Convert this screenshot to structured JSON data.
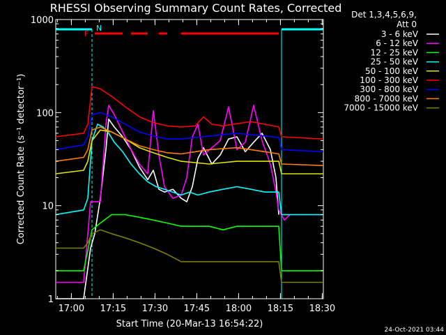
{
  "title": "RHESSI Observing Summary Count Rates, Corrected",
  "detector_info": [
    "Det 1,3,4,5,6,9,",
    "Att 0"
  ],
  "flag_labels": {
    "flare": "F",
    "night": "N"
  },
  "timestamp": "24-Oct-2021 03:44",
  "colors": {
    "axes": "#ffffff",
    "cyan_flag": "#00ffff",
    "red_flag": "#ff0000",
    "series": [
      "#ffffff",
      "#ff00ff",
      "#00ff00",
      "#00ffff",
      "#e5e500",
      "#ff0000",
      "#0000ff",
      "#ff8000",
      "#808000"
    ]
  },
  "chart_data": {
    "type": "line",
    "title": "RHESSI Observing Summary Count Rates, Corrected",
    "xlabel": "Start Time (20-Mar-13 16:54:22)",
    "ylabel": "Corrected Count Rate (s⁻¹ detector⁻¹)",
    "y_scale": "log",
    "ylim": [
      1,
      1000
    ],
    "xlim_min": [
      0,
      96
    ],
    "x_tick_labels": [
      "17:00",
      "17:15",
      "17:30",
      "17:45",
      "18:00",
      "18:15",
      "18:30"
    ],
    "x_tick_min": [
      5.6,
      20.6,
      35.6,
      50.6,
      65.6,
      80.6,
      95.6
    ],
    "y_tick_labels": [
      "1",
      "10",
      "100",
      "1000"
    ],
    "y_tick_values": [
      1,
      10,
      100,
      1000
    ],
    "legend_position": "right",
    "series": [
      {
        "name": "3 - 6 keV",
        "color": "#ffffff",
        "x": [
          0,
          10,
          12.5,
          14,
          16,
          18,
          19,
          21,
          24,
          27,
          30,
          33,
          35,
          37,
          39,
          42,
          45,
          47,
          49,
          51,
          53,
          56,
          59,
          62,
          65,
          68,
          71,
          74,
          77,
          79,
          80
        ],
        "y": [
          1,
          1,
          3.5,
          5,
          12,
          40,
          85,
          70,
          55,
          40,
          26,
          19,
          24,
          15,
          14,
          15,
          12,
          11,
          16,
          32,
          42,
          28,
          35,
          52,
          55,
          38,
          48,
          60,
          40,
          20,
          8
        ]
      },
      {
        "name": "6 - 12 keV",
        "color": "#ff00ff",
        "x": [
          0,
          10,
          12.5,
          14,
          16,
          18,
          19,
          21,
          24,
          27,
          30,
          33,
          35,
          37,
          39,
          42,
          45,
          47,
          49,
          51,
          53,
          56,
          59,
          62,
          65,
          68,
          71,
          74,
          77,
          79,
          80,
          82,
          84
        ],
        "y": [
          1.5,
          1.5,
          11,
          11,
          11,
          75,
          120,
          95,
          62,
          40,
          28,
          22,
          105,
          35,
          16,
          12,
          13,
          20,
          55,
          75,
          35,
          42,
          50,
          115,
          40,
          48,
          120,
          50,
          28,
          14,
          9,
          7,
          8
        ]
      },
      {
        "name": "12 - 25 keV",
        "color": "#00ff00",
        "x": [
          0,
          10,
          13,
          16,
          20,
          25,
          30,
          35,
          40,
          45,
          50,
          55,
          60,
          65,
          70,
          75,
          80,
          81,
          96
        ],
        "y": [
          2,
          2,
          5.5,
          6.5,
          8,
          8,
          7.5,
          7,
          6.5,
          6,
          6,
          6,
          5.5,
          6,
          6,
          6,
          6,
          2,
          2
        ]
      },
      {
        "name": "25 - 50 keV",
        "color": "#00ffff",
        "x": [
          0,
          10,
          11.5,
          13,
          15,
          17,
          19,
          21,
          24,
          27,
          30,
          33,
          36,
          39,
          42,
          45,
          48,
          51,
          55,
          60,
          65,
          70,
          75,
          80,
          81,
          96
        ],
        "y": [
          8,
          9,
          12,
          50,
          75,
          70,
          60,
          48,
          38,
          28,
          22,
          18,
          16,
          15,
          14,
          13,
          14,
          13,
          14,
          15,
          16,
          15,
          14,
          14,
          8,
          8
        ]
      },
      {
        "name": "50 - 100 keV",
        "color": "#e5e500",
        "x": [
          0,
          10,
          11.5,
          13,
          16,
          20,
          25,
          30,
          35,
          40,
          45,
          50,
          55,
          60,
          65,
          70,
          75,
          80,
          81,
          96
        ],
        "y": [
          22,
          24,
          30,
          50,
          65,
          62,
          52,
          42,
          37,
          33,
          30,
          29,
          28,
          29,
          30,
          30,
          30,
          30,
          22,
          22
        ]
      },
      {
        "name": "100 - 300 keV",
        "color": "#ff0000",
        "x": [
          0,
          10,
          11.5,
          13,
          16,
          20,
          25,
          30,
          35,
          40,
          45,
          50,
          53,
          56,
          60,
          65,
          70,
          75,
          80,
          81,
          96
        ],
        "y": [
          55,
          60,
          75,
          190,
          180,
          150,
          115,
          90,
          78,
          72,
          70,
          72,
          90,
          75,
          72,
          76,
          80,
          75,
          70,
          55,
          52
        ]
      },
      {
        "name": "300 - 800 keV",
        "color": "#0000ff",
        "x": [
          0,
          10,
          11.5,
          13,
          16,
          20,
          25,
          30,
          35,
          40,
          45,
          50,
          55,
          60,
          65,
          70,
          75,
          80,
          81,
          96
        ],
        "y": [
          40,
          45,
          55,
          95,
          100,
          90,
          75,
          62,
          56,
          52,
          52,
          54,
          56,
          58,
          60,
          58,
          56,
          54,
          40,
          38
        ]
      },
      {
        "name": "800 - 7000 keV",
        "color": "#ff8000",
        "x": [
          0,
          10,
          11.5,
          13,
          16,
          20,
          25,
          30,
          35,
          40,
          45,
          50,
          55,
          60,
          65,
          70,
          75,
          80,
          81,
          96
        ],
        "y": [
          30,
          33,
          40,
          65,
          70,
          62,
          52,
          44,
          40,
          37,
          36,
          38,
          40,
          41,
          42,
          40,
          38,
          36,
          28,
          27
        ]
      },
      {
        "name": "7000 - 15000 keV",
        "color": "#808000",
        "x": [
          0,
          10,
          11.5,
          13,
          16,
          20,
          25,
          30,
          35,
          40,
          45,
          50,
          55,
          60,
          65,
          70,
          75,
          80,
          81,
          96
        ],
        "y": [
          3.5,
          3.5,
          4,
          5,
          5.5,
          5,
          4.5,
          4,
          3.5,
          3,
          2.5,
          2.5,
          2.5,
          2.5,
          2.5,
          2.5,
          2.5,
          2.5,
          1.5,
          1.5
        ]
      }
    ],
    "flags": {
      "night_min": [
        [
          0,
          13
        ],
        [
          81,
          96
        ]
      ],
      "flare_min": [
        [
          14,
          24
        ],
        [
          27,
          33
        ],
        [
          37,
          40
        ],
        [
          45,
          80
        ]
      ],
      "night_boundary_min": [
        13,
        81
      ]
    }
  }
}
